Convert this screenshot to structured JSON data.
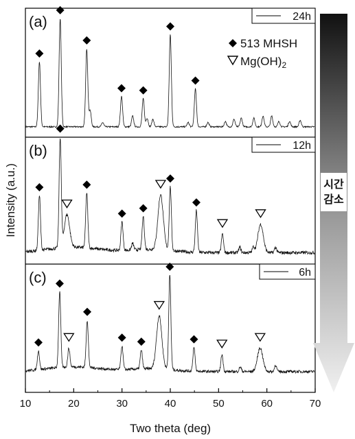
{
  "figure": {
    "xlabel": "Two theta (deg)",
    "ylabel": "Intensity (a.u.)",
    "xticks": [
      "10",
      "20",
      "30",
      "40",
      "50",
      "60",
      "70"
    ],
    "legend": {
      "mhsh_label": "513 MHSH",
      "mgoh2_label": "Mg(OH)",
      "mgoh2_sub": "2"
    },
    "arrow": {
      "label_line1": "시간",
      "label_line2": "감소",
      "gradient_top": "#111111",
      "gradient_bottom": "#f0f0f0"
    }
  },
  "chart_data": [
    {
      "type": "line",
      "panel": "(a)",
      "series": [
        {
          "name": "24h"
        }
      ],
      "xlim": [
        10,
        70
      ],
      "markers": {
        "513 MHSH": [
          12.9,
          17.2,
          22.7,
          29.9,
          34.4,
          40.0,
          45.2
        ],
        "Mg(OH)2": []
      },
      "peaks": [
        [
          12.9,
          0.6
        ],
        [
          17.2,
          1.0
        ],
        [
          22.7,
          0.72
        ],
        [
          23.4,
          0.15
        ],
        [
          26.0,
          0.04
        ],
        [
          29.9,
          0.28
        ],
        [
          32.2,
          0.1
        ],
        [
          34.4,
          0.26
        ],
        [
          35.2,
          0.08
        ],
        [
          36.4,
          0.07
        ],
        [
          40.0,
          0.85
        ],
        [
          43.7,
          0.04
        ],
        [
          45.2,
          0.35
        ],
        [
          47.8,
          0.04
        ],
        [
          51.4,
          0.05
        ],
        [
          53.2,
          0.07
        ],
        [
          54.7,
          0.08
        ],
        [
          57.3,
          0.08
        ],
        [
          59.2,
          0.1
        ],
        [
          61.0,
          0.1
        ],
        [
          62.5,
          0.05
        ],
        [
          64.7,
          0.05
        ],
        [
          66.9,
          0.06
        ]
      ]
    },
    {
      "type": "line",
      "panel": "(b)",
      "series": [
        {
          "name": "12h"
        }
      ],
      "xlim": [
        10,
        70
      ],
      "markers": {
        "513 MHSH": [
          12.9,
          17.2,
          22.7,
          30.0,
          34.4,
          40.0,
          45.4
        ],
        "Mg(OH)2": [
          18.6,
          38.0,
          50.8,
          58.7
        ]
      },
      "peaks": [
        [
          12.9,
          0.5
        ],
        [
          17.2,
          1.0
        ],
        [
          18.6,
          0.3
        ],
        [
          22.7,
          0.5
        ],
        [
          30.0,
          0.26
        ],
        [
          32.2,
          0.06
        ],
        [
          34.4,
          0.3
        ],
        [
          38.0,
          0.5
        ],
        [
          40.0,
          0.58
        ],
        [
          45.4,
          0.38
        ],
        [
          50.8,
          0.17
        ],
        [
          54.4,
          0.05
        ],
        [
          57.2,
          0.05
        ],
        [
          58.7,
          0.26
        ],
        [
          61.8,
          0.05
        ]
      ]
    },
    {
      "type": "line",
      "panel": "(c)",
      "series": [
        {
          "name": "6h"
        }
      ],
      "xlim": [
        10,
        70
      ],
      "markers": {
        "513 MHSH": [
          12.7,
          17.1,
          22.8,
          30.0,
          34.0,
          39.9,
          44.9
        ],
        "Mg(OH)2": [
          19.0,
          37.7,
          50.7,
          58.6
        ]
      },
      "peaks": [
        [
          12.7,
          0.2
        ],
        [
          17.1,
          0.8
        ],
        [
          19.0,
          0.2
        ],
        [
          22.8,
          0.5
        ],
        [
          30.0,
          0.25
        ],
        [
          34.0,
          0.2
        ],
        [
          37.7,
          0.56
        ],
        [
          39.9,
          1.0
        ],
        [
          44.9,
          0.25
        ],
        [
          50.7,
          0.18
        ],
        [
          54.5,
          0.05
        ],
        [
          58.6,
          0.25
        ],
        [
          61.8,
          0.07
        ]
      ]
    }
  ]
}
